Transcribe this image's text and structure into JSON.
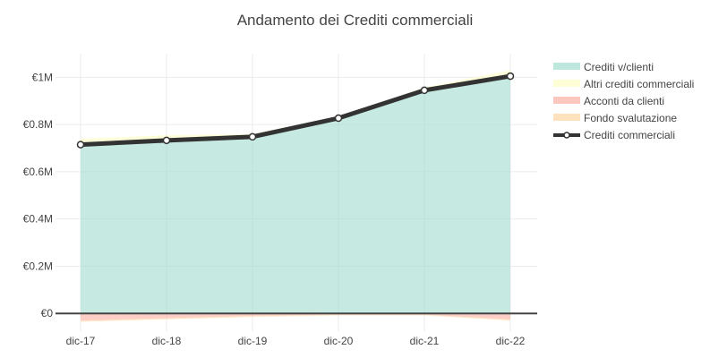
{
  "chart_data": {
    "type": "area",
    "title": "Andamento dei Crediti commerciali",
    "categories": [
      "dic-17",
      "dic-18",
      "dic-19",
      "dic-20",
      "dic-21",
      "dic-22"
    ],
    "y_ticks": [
      0,
      200000,
      400000,
      600000,
      800000,
      1000000
    ],
    "y_tick_labels": [
      "€0",
      "€0.2M",
      "€0.4M",
      "€0.6M",
      "€0.8M",
      "€1M"
    ],
    "ylim": [
      -75000,
      1100000
    ],
    "grid": true,
    "legend_position": "top-right",
    "series": [
      {
        "name": "Crediti v/clienti",
        "type": "area",
        "color": "#a8dfd2",
        "values": [
          710000,
          730000,
          745000,
          825000,
          945000,
          1005000
        ]
      },
      {
        "name": "Altri crediti commerciali",
        "type": "area",
        "color": "#fdfdc8",
        "values": [
          30000,
          25000,
          15000,
          10000,
          12000,
          25000
        ]
      },
      {
        "name": "Acconti da clienti",
        "type": "area",
        "color": "#fbb4a8",
        "values": [
          -30000,
          -20000,
          -10000,
          -5000,
          -5000,
          -25000
        ]
      },
      {
        "name": "Fondo svalutazione",
        "type": "area",
        "color": "#fdd8a8",
        "values": [
          -5000,
          -5000,
          -5000,
          -3000,
          -3000,
          -5000
        ]
      },
      {
        "name": "Crediti commerciali",
        "type": "line",
        "color": "#333333",
        "values": [
          715000,
          733000,
          748000,
          827000,
          945000,
          1005000
        ]
      }
    ]
  }
}
